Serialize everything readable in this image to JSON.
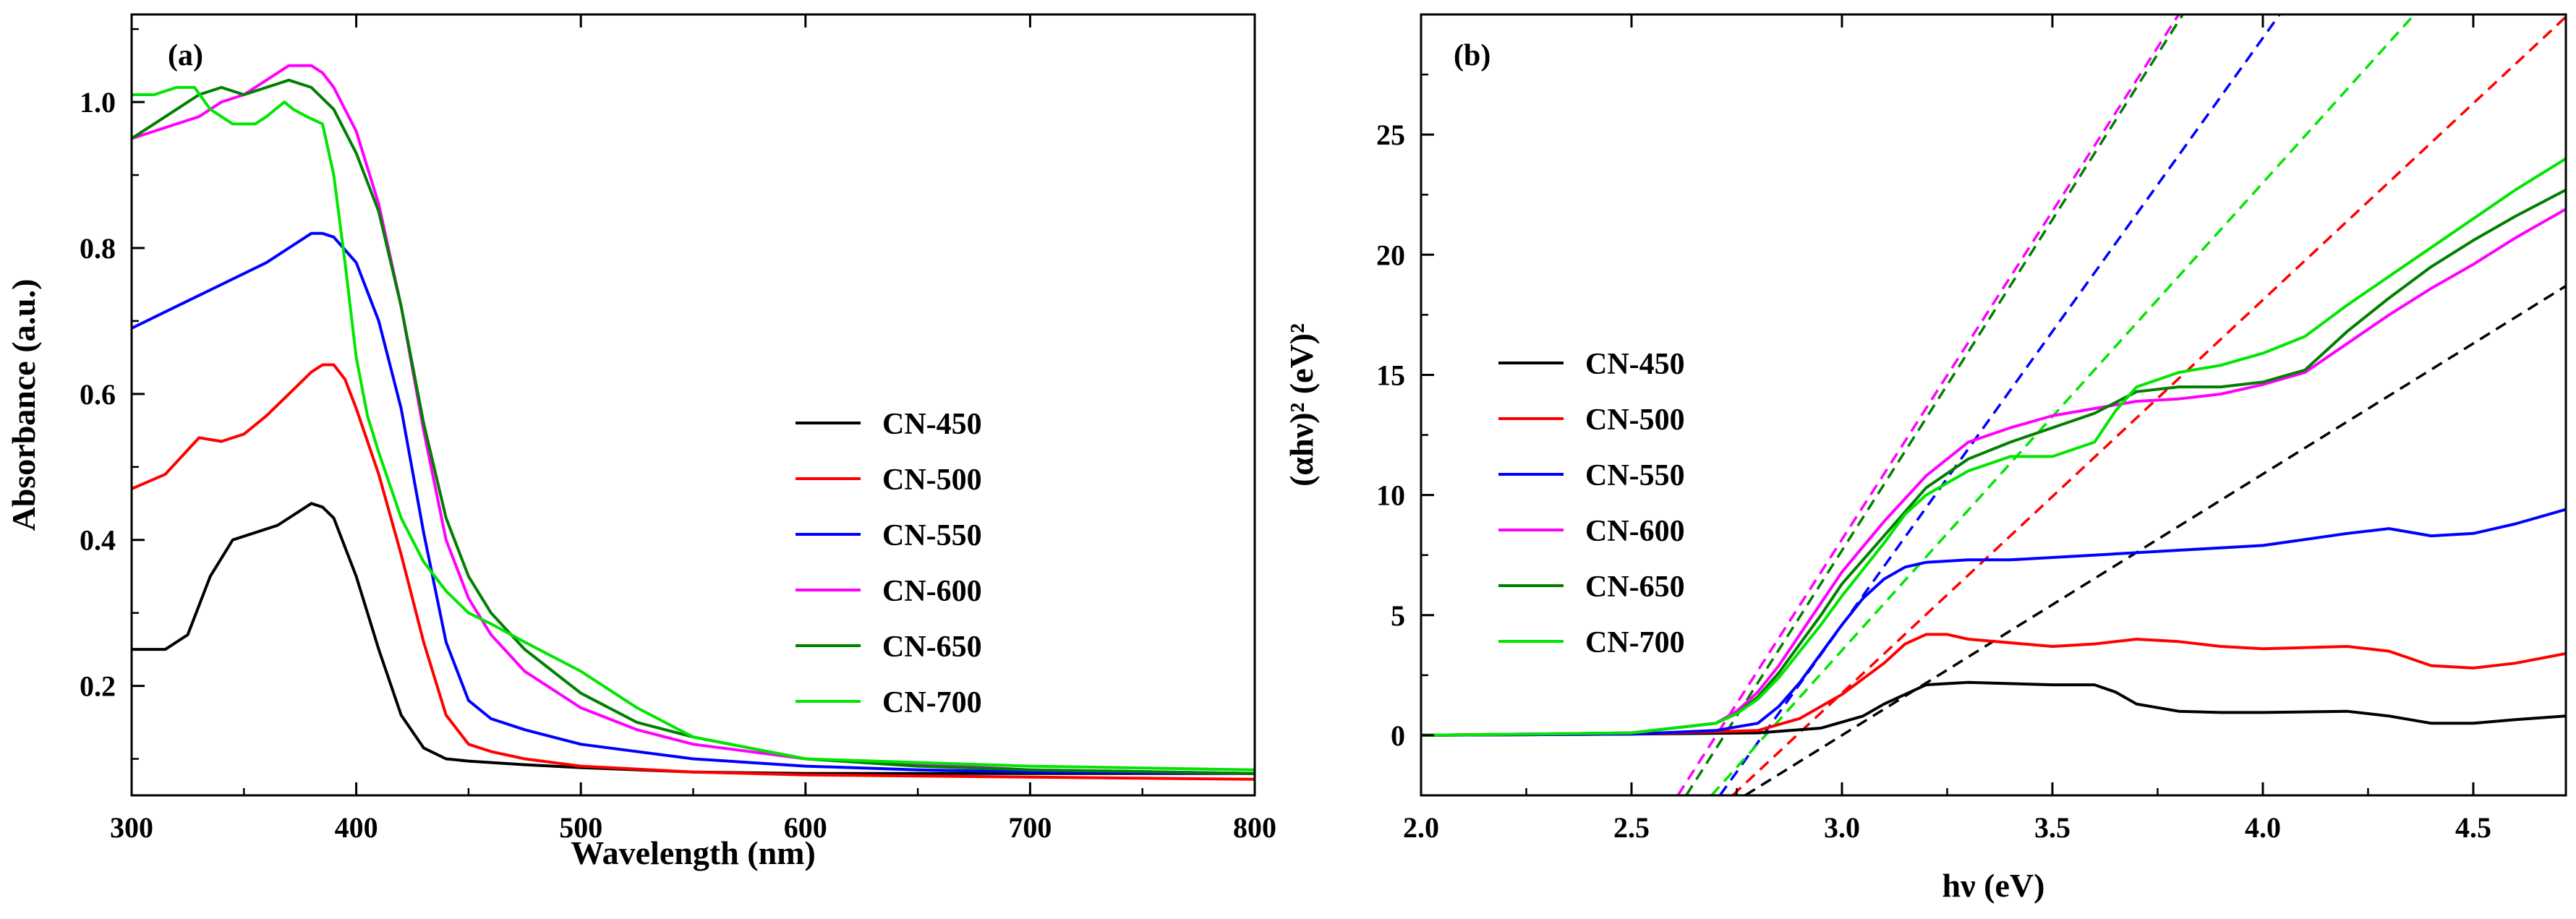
{
  "chart_data": [
    {
      "type": "line",
      "panel": "(a)",
      "xlabel": "Wavelength (nm)",
      "ylabel": "Absorbance (a.u.)",
      "xlim": [
        300,
        800
      ],
      "ylim": [
        0.05,
        1.12
      ],
      "xticks": [
        300,
        400,
        500,
        600,
        700,
        800
      ],
      "xtick_labels": [
        "300",
        "400",
        "500",
        "600",
        "700",
        "800"
      ],
      "yticks": [
        0.2,
        0.4,
        0.6,
        0.8,
        1.0
      ],
      "ytick_labels": [
        "0.2",
        "0.4",
        "0.6",
        "0.8",
        "1.0"
      ],
      "legend_position": "right",
      "series": [
        {
          "name": "CN-450",
          "color": "#000000",
          "x": [
            300,
            315,
            325,
            335,
            345,
            355,
            365,
            375,
            380,
            385,
            390,
            400,
            410,
            420,
            430,
            440,
            450,
            475,
            500,
            550,
            600,
            700,
            800
          ],
          "y": [
            0.25,
            0.25,
            0.27,
            0.35,
            0.4,
            0.41,
            0.42,
            0.44,
            0.45,
            0.445,
            0.43,
            0.35,
            0.25,
            0.16,
            0.115,
            0.1,
            0.097,
            0.092,
            0.088,
            0.082,
            0.08,
            0.08,
            0.08
          ]
        },
        {
          "name": "CN-500",
          "color": "#ff0000",
          "x": [
            300,
            315,
            330,
            340,
            350,
            360,
            370,
            380,
            385,
            390,
            395,
            400,
            410,
            420,
            430,
            440,
            450,
            460,
            475,
            500,
            550,
            600,
            700,
            800
          ],
          "y": [
            0.47,
            0.49,
            0.54,
            0.535,
            0.545,
            0.57,
            0.6,
            0.63,
            0.64,
            0.64,
            0.62,
            0.58,
            0.49,
            0.38,
            0.26,
            0.16,
            0.12,
            0.11,
            0.1,
            0.09,
            0.082,
            0.078,
            0.075,
            0.072
          ]
        },
        {
          "name": "CN-550",
          "color": "#0000ff",
          "x": [
            300,
            320,
            340,
            360,
            370,
            380,
            385,
            390,
            400,
            410,
            420,
            430,
            440,
            450,
            460,
            475,
            500,
            550,
            600,
            650,
            700,
            800
          ],
          "y": [
            0.69,
            0.72,
            0.75,
            0.78,
            0.8,
            0.82,
            0.82,
            0.815,
            0.78,
            0.7,
            0.58,
            0.41,
            0.26,
            0.18,
            0.155,
            0.14,
            0.12,
            0.1,
            0.09,
            0.085,
            0.082,
            0.08
          ]
        },
        {
          "name": "CN-600",
          "color": "#ff00ff",
          "x": [
            300,
            310,
            320,
            330,
            340,
            350,
            360,
            370,
            375,
            380,
            385,
            390,
            400,
            410,
            420,
            430,
            440,
            450,
            460,
            475,
            500,
            525,
            550,
            600,
            700,
            800
          ],
          "y": [
            0.95,
            0.96,
            0.97,
            0.98,
            1.0,
            1.01,
            1.03,
            1.05,
            1.05,
            1.05,
            1.04,
            1.02,
            0.96,
            0.86,
            0.72,
            0.55,
            0.4,
            0.32,
            0.27,
            0.22,
            0.17,
            0.14,
            0.12,
            0.1,
            0.085,
            0.08
          ]
        },
        {
          "name": "CN-650",
          "color": "#007f00",
          "x": [
            300,
            310,
            320,
            330,
            340,
            350,
            360,
            370,
            380,
            390,
            400,
            410,
            420,
            430,
            440,
            450,
            460,
            475,
            500,
            525,
            550,
            600,
            650,
            700,
            800
          ],
          "y": [
            0.95,
            0.97,
            0.99,
            1.01,
            1.02,
            1.01,
            1.02,
            1.03,
            1.02,
            0.99,
            0.93,
            0.85,
            0.72,
            0.56,
            0.43,
            0.35,
            0.3,
            0.25,
            0.19,
            0.15,
            0.13,
            0.1,
            0.09,
            0.085,
            0.08
          ]
        },
        {
          "name": "CN-700",
          "color": "#00e600",
          "x": [
            300,
            310,
            320,
            328,
            335,
            345,
            355,
            360,
            368,
            372,
            378,
            385,
            390,
            395,
            400,
            405,
            410,
            420,
            430,
            440,
            450,
            460,
            475,
            500,
            525,
            550,
            600,
            700,
            800
          ],
          "y": [
            1.01,
            1.01,
            1.02,
            1.02,
            0.99,
            0.97,
            0.97,
            0.98,
            1.0,
            0.99,
            0.98,
            0.97,
            0.9,
            0.78,
            0.65,
            0.57,
            0.52,
            0.43,
            0.37,
            0.33,
            0.3,
            0.285,
            0.26,
            0.22,
            0.17,
            0.13,
            0.1,
            0.09,
            0.085
          ]
        }
      ]
    },
    {
      "type": "line",
      "panel": "(b)",
      "xlabel": "hν (eV)",
      "ylabel": "(αhν)² (eV)²",
      "xlim": [
        2.0,
        4.72
      ],
      "ylim": [
        -2.5,
        30
      ],
      "xticks": [
        2.0,
        2.5,
        3.0,
        3.5,
        4.0,
        4.5
      ],
      "xtick_labels": [
        "2.0",
        "2.5",
        "3.0",
        "3.5",
        "4.0",
        "4.5"
      ],
      "yticks": [
        0,
        5,
        10,
        15,
        20,
        25
      ],
      "ytick_labels": [
        "0",
        "5",
        "10",
        "15",
        "20",
        "25"
      ],
      "legend_position": "left",
      "series": [
        {
          "name": "CN-450",
          "color": "#000000",
          "x": [
            2.0,
            2.5,
            2.8,
            2.95,
            3.05,
            3.1,
            3.2,
            3.3,
            3.5,
            3.6,
            3.65,
            3.7,
            3.8,
            3.9,
            4.0,
            4.2,
            4.3,
            4.4,
            4.5,
            4.6,
            4.72
          ],
          "y": [
            0,
            0.05,
            0.1,
            0.3,
            0.8,
            1.3,
            2.1,
            2.2,
            2.1,
            2.1,
            1.8,
            1.3,
            1.0,
            0.95,
            0.95,
            1.0,
            0.8,
            0.5,
            0.5,
            0.65,
            0.8
          ]
        },
        {
          "name": "CN-500",
          "color": "#ff0000",
          "x": [
            2.0,
            2.5,
            2.8,
            2.9,
            3.0,
            3.1,
            3.15,
            3.2,
            3.25,
            3.3,
            3.5,
            3.6,
            3.7,
            3.8,
            3.9,
            4.0,
            4.2,
            4.3,
            4.4,
            4.5,
            4.6,
            4.72
          ],
          "y": [
            0,
            0.05,
            0.2,
            0.7,
            1.7,
            3.0,
            3.8,
            4.2,
            4.2,
            4.0,
            3.7,
            3.8,
            4.0,
            3.9,
            3.7,
            3.6,
            3.7,
            3.5,
            2.9,
            2.8,
            3.0,
            3.4
          ]
        },
        {
          "name": "CN-550",
          "color": "#0000ff",
          "x": [
            2.0,
            2.5,
            2.7,
            2.8,
            2.85,
            2.9,
            2.95,
            3.0,
            3.05,
            3.1,
            3.15,
            3.2,
            3.3,
            3.4,
            3.5,
            3.6,
            3.8,
            4.0,
            4.2,
            4.3,
            4.4,
            4.5,
            4.6,
            4.72
          ],
          "y": [
            0,
            0.05,
            0.2,
            0.5,
            1.2,
            2.2,
            3.4,
            4.6,
            5.7,
            6.5,
            7.0,
            7.2,
            7.3,
            7.3,
            7.4,
            7.5,
            7.7,
            7.9,
            8.4,
            8.6,
            8.3,
            8.4,
            8.8,
            9.4
          ]
        },
        {
          "name": "CN-600",
          "color": "#ff00ff",
          "x": [
            2.0,
            2.5,
            2.7,
            2.75,
            2.8,
            2.85,
            2.9,
            2.95,
            3.0,
            3.1,
            3.2,
            3.3,
            3.4,
            3.5,
            3.6,
            3.7,
            3.8,
            3.9,
            4.0,
            4.1,
            4.2,
            4.3,
            4.4,
            4.5,
            4.6,
            4.72
          ],
          "y": [
            0,
            0.1,
            0.5,
            1.0,
            1.8,
            2.9,
            4.2,
            5.5,
            6.8,
            8.9,
            10.8,
            12.2,
            12.8,
            13.3,
            13.6,
            13.9,
            14.0,
            14.2,
            14.6,
            15.1,
            16.3,
            17.5,
            18.6,
            19.6,
            20.7,
            21.9
          ]
        },
        {
          "name": "CN-650",
          "color": "#007f00",
          "x": [
            2.0,
            2.5,
            2.7,
            2.75,
            2.8,
            2.85,
            2.9,
            2.95,
            3.0,
            3.1,
            3.2,
            3.3,
            3.4,
            3.5,
            3.6,
            3.7,
            3.8,
            3.9,
            4.0,
            4.1,
            4.2,
            4.3,
            4.4,
            4.5,
            4.6,
            4.72
          ],
          "y": [
            0,
            0.1,
            0.5,
            0.9,
            1.6,
            2.6,
            3.8,
            5.0,
            6.3,
            8.3,
            10.3,
            11.5,
            12.2,
            12.8,
            13.4,
            14.3,
            14.5,
            14.5,
            14.7,
            15.2,
            16.8,
            18.2,
            19.5,
            20.6,
            21.6,
            22.7
          ]
        },
        {
          "name": "CN-700",
          "color": "#00e600",
          "x": [
            2.0,
            2.5,
            2.7,
            2.75,
            2.8,
            2.85,
            2.9,
            2.95,
            3.0,
            3.1,
            3.15,
            3.2,
            3.3,
            3.4,
            3.5,
            3.6,
            3.65,
            3.7,
            3.8,
            3.9,
            4.0,
            4.1,
            4.2,
            4.3,
            4.4,
            4.5,
            4.6,
            4.72
          ],
          "y": [
            0,
            0.1,
            0.5,
            0.9,
            1.5,
            2.4,
            3.5,
            4.6,
            5.8,
            8.0,
            9.2,
            10.0,
            11.0,
            11.6,
            11.6,
            12.2,
            13.5,
            14.5,
            15.1,
            15.4,
            15.9,
            16.6,
            17.9,
            19.1,
            20.3,
            21.5,
            22.7,
            24.0
          ]
        }
      ],
      "tangent_lines": [
        {
          "name": "CN-450 fit",
          "color": "#000000",
          "style": "dashed",
          "x": [
            2.77,
            4.72
          ],
          "y": [
            -2.5,
            18.7
          ]
        },
        {
          "name": "CN-500 fit",
          "color": "#ff0000",
          "style": "dashed",
          "x": [
            2.74,
            4.72
          ],
          "y": [
            -2.5,
            29.9
          ]
        },
        {
          "name": "CN-550 fit",
          "color": "#0000ff",
          "style": "dashed",
          "x": [
            2.71,
            4.04
          ],
          "y": [
            -2.5,
            30.0
          ]
        },
        {
          "name": "CN-600 fit",
          "color": "#ff00ff",
          "style": "dashed",
          "x": [
            2.61,
            3.8
          ],
          "y": [
            -2.5,
            30.0
          ]
        },
        {
          "name": "CN-650 fit",
          "color": "#007f00",
          "style": "dashed",
          "x": [
            2.63,
            3.81
          ],
          "y": [
            -2.5,
            30.0
          ]
        },
        {
          "name": "CN-700 fit",
          "color": "#00e600",
          "style": "dashed",
          "x": [
            2.69,
            4.36
          ],
          "y": [
            -2.5,
            30.0
          ]
        }
      ]
    }
  ]
}
